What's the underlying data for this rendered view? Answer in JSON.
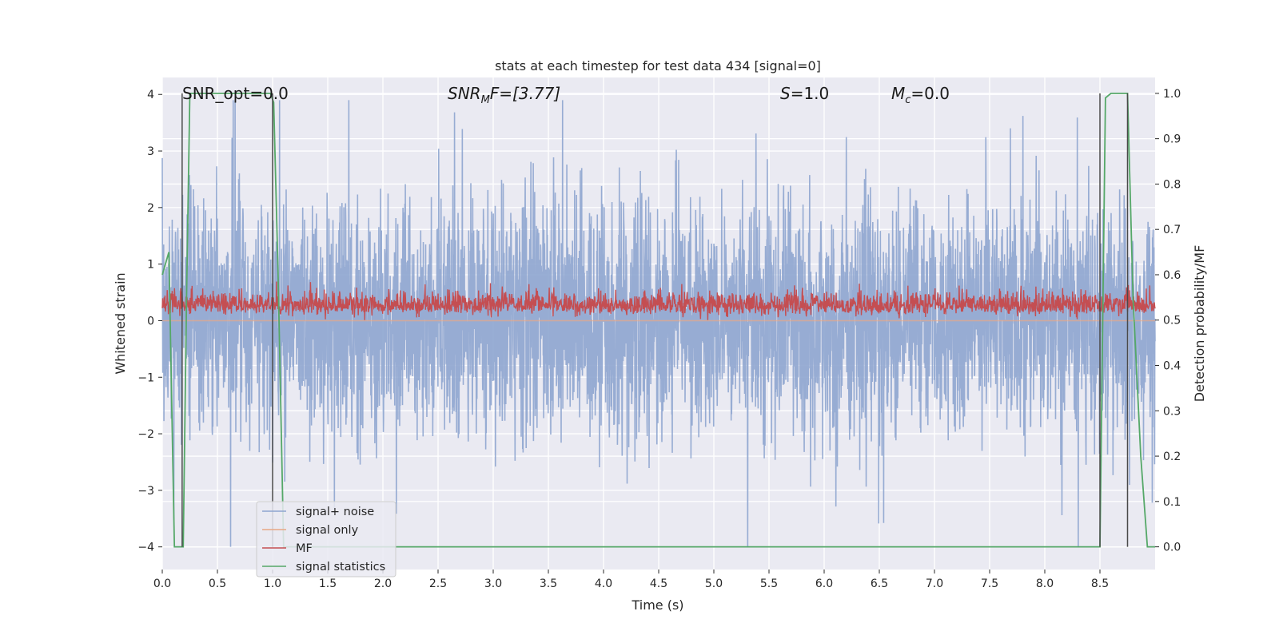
{
  "chart_data": {
    "type": "line",
    "title": "stats at each timestep for test data 434 [signal=0]",
    "xlabel": "Time (s)",
    "ylabel_left": "Whitened strain",
    "ylabel_right": "Detection probability/MF",
    "xlim": [
      0.0,
      9.0
    ],
    "ylim_left": [
      -4.4,
      4.3
    ],
    "ylim_right": [
      -0.05,
      1.035
    ],
    "x_ticks": [
      0.0,
      0.5,
      1.0,
      1.5,
      2.0,
      2.5,
      3.0,
      3.5,
      4.0,
      4.5,
      5.0,
      5.5,
      6.0,
      6.5,
      7.0,
      7.5,
      8.0,
      8.5
    ],
    "x_tick_labels": [
      "0.0",
      "0.5",
      "1.0",
      "1.5",
      "2.0",
      "2.5",
      "3.0",
      "3.5",
      "4.0",
      "4.5",
      "5.0",
      "5.5",
      "6.0",
      "6.5",
      "7.0",
      "7.5",
      "8.0",
      "8.5"
    ],
    "y_left_ticks": [
      -4,
      -3,
      -2,
      -1,
      0,
      1,
      2,
      3,
      4
    ],
    "y_left_tick_labels": [
      "−4",
      "−3",
      "−2",
      "−1",
      "0",
      "1",
      "2",
      "3",
      "4"
    ],
    "y_right_ticks": [
      0.0,
      0.1,
      0.2,
      0.3,
      0.4,
      0.5,
      0.6,
      0.7,
      0.8,
      0.9,
      1.0
    ],
    "y_right_tick_labels": [
      "0.0",
      "0.1",
      "0.2",
      "0.3",
      "0.4",
      "0.5",
      "0.6",
      "0.7",
      "0.8",
      "0.9",
      "1.0"
    ],
    "grid": true,
    "legend_position": "lower-left",
    "annotations": {
      "snr_opt": "SNR_opt=0.0",
      "snr_mf_label": "SNR",
      "snr_mf_sub": "M",
      "snr_mf_tail": "F=[3.77]",
      "s_label": "S",
      "s_value": "=1.0",
      "mc_label": "M",
      "mc_sub": "c",
      "mc_value": "=0.0"
    },
    "series": [
      {
        "name": "signal+ noise",
        "color": "#8ea5cf",
        "axis": "left",
        "style": "noise",
        "approx_range": [
          -4.0,
          3.9
        ]
      },
      {
        "name": "signal only",
        "color": "#e8a785",
        "axis": "left",
        "style": "flat",
        "value": 0.0
      },
      {
        "name": "MF",
        "color": "#c44e52",
        "axis": "right",
        "style": "mf",
        "approx_range": [
          0.5,
          0.585
        ]
      },
      {
        "name": "signal statistics",
        "color": "#55a868",
        "axis": "right",
        "style": "step",
        "x": [
          0.0,
          0.06,
          0.11,
          0.19,
          0.22,
          0.25,
          0.98,
          1.01,
          1.05,
          1.1,
          8.5,
          8.55,
          8.6,
          8.65,
          8.75,
          8.8,
          8.87,
          8.93,
          9.0
        ],
        "y": [
          0.6,
          0.65,
          0.0,
          0.0,
          0.55,
          1.0,
          1.0,
          0.98,
          0.6,
          0.0,
          0.0,
          0.99,
          1.0,
          1.0,
          1.0,
          0.55,
          0.2,
          0.0,
          0.0
        ]
      }
    ],
    "vertical_markers": [
      {
        "x": 0.18,
        "ymin_right": 0.0,
        "ymax_right": 1.0
      },
      {
        "x": 1.0,
        "ymin_right": 0.0,
        "ymax_right": 1.0
      },
      {
        "x": 8.5,
        "ymin_right": 0.0,
        "ymax_right": 1.0
      },
      {
        "x": 8.75,
        "ymin_right": 0.0,
        "ymax_right": 1.0
      }
    ]
  }
}
